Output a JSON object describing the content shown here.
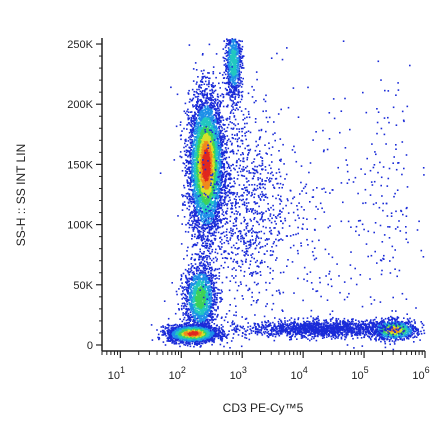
{
  "chart_data": {
    "type": "scatter",
    "subtype": "flow-cytometry density dot plot",
    "title": "",
    "xlabel": "CD3 PE-Cy™5",
    "ylabel": "SS-H :: SS INT LIN",
    "x_scale": "log",
    "y_scale": "linear",
    "xlim": [
      5,
      1000000
    ],
    "ylim": [
      -5000,
      255000
    ],
    "x_ticks": [
      {
        "value": 10,
        "base": "10",
        "exp": "1"
      },
      {
        "value": 100,
        "base": "10",
        "exp": "2"
      },
      {
        "value": 1000,
        "base": "10",
        "exp": "3"
      },
      {
        "value": 10000,
        "base": "10",
        "exp": "4"
      },
      {
        "value": 100000,
        "base": "10",
        "exp": "5"
      },
      {
        "value": 1000000,
        "base": "10",
        "exp": "6"
      }
    ],
    "y_ticks": [
      {
        "value": 0,
        "label": "0"
      },
      {
        "value": 50000,
        "label": "50K"
      },
      {
        "value": 100000,
        "label": "100K"
      },
      {
        "value": 150000,
        "label": "150K"
      },
      {
        "value": 200000,
        "label": "200K"
      },
      {
        "value": 250000,
        "label": "250K"
      }
    ],
    "grid": false,
    "legend": "none",
    "color_scale": [
      "#1a2bd8",
      "#1e8fe8",
      "#22c7c0",
      "#3ed25a",
      "#d8e02a",
      "#f08a1c",
      "#e0281e"
    ],
    "populations": [
      {
        "x_center": 250,
        "y_center": 150000,
        "x_spread_decades": 0.14,
        "y_spread": 28000,
        "events": 5200,
        "peak_color": "#e0281e"
      },
      {
        "x_center": 200,
        "y_center": 40000,
        "x_spread_decades": 0.13,
        "y_spread": 14000,
        "events": 1500,
        "peak_color": "#3ed25a"
      },
      {
        "x_center": 150,
        "y_center": 10000,
        "x_spread_decades": 0.2,
        "y_spread": 3500,
        "events": 2200,
        "peak_color": "#e0281e"
      },
      {
        "x_center": 700,
        "y_center": 235000,
        "x_spread_decades": 0.07,
        "y_spread": 15000,
        "events": 800,
        "peak_color": "#22c7c0"
      },
      {
        "x_center": 300000,
        "y_center": 13000,
        "x_spread_decades": 0.18,
        "y_spread": 4000,
        "events": 900,
        "peak_color": "#f08a1c"
      },
      {
        "x_center": 20000,
        "y_center": 14000,
        "x_spread_decades": 0.6,
        "y_spread": 3500,
        "events": 1500,
        "peak_color": "#1a2bd8"
      },
      {
        "x_center": 1000,
        "y_center": 120000,
        "x_spread_decades": 0.35,
        "y_spread": 45000,
        "events": 900,
        "peak_color": "#1a2bd8"
      },
      {
        "x_center": 10000,
        "y_center": 90000,
        "x_spread_decades": 0.8,
        "y_spread": 60000,
        "events": 350,
        "peak_color": "#1a2bd8"
      },
      {
        "x_center": 250000,
        "y_center": 120000,
        "x_spread_decades": 0.25,
        "y_spread": 70000,
        "events": 120,
        "peak_color": "#1a2bd8"
      }
    ]
  }
}
